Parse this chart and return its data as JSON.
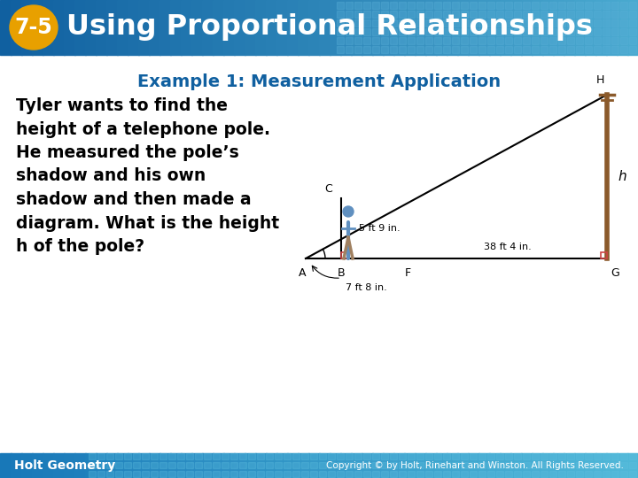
{
  "title": "Using Proportional Relationships",
  "badge_text": "7-5",
  "subtitle": "Example 1: Measurement Application",
  "body_text": "Tyler wants to find the\nheight of a telephone pole.\nHe measured the pole’s\nshadow and his own\nshadow and then made a\ndiagram. What is the height\nh of the pole?",
  "footer_left": "Holt Geometry",
  "footer_right": "Copyright © by Holt, Rinehart and Winston. All Rights Reserved.",
  "header_color_left": "#1060a0",
  "header_color_right": "#4aaad0",
  "badge_color": "#e8a000",
  "header_text_color": "#ffffff",
  "subtitle_color": "#1060a0",
  "body_text_color": "#000000",
  "footer_bg_left": "#1878b8",
  "footer_bg_right": "#50b8d8",
  "footer_text_color": "#ffffff",
  "bg_color": "#ffffff",
  "grid_color": "#5ab0d8",
  "label_5ft9in": "5 ft 9 in.",
  "label_38ft4in": "38 ft 4 in.",
  "label_7ft8in": "7 ft 8 in.",
  "label_h": "h",
  "person_color": "#6090c0",
  "pole_color": "#8B5A2B",
  "right_angle_color": "#cc4444"
}
